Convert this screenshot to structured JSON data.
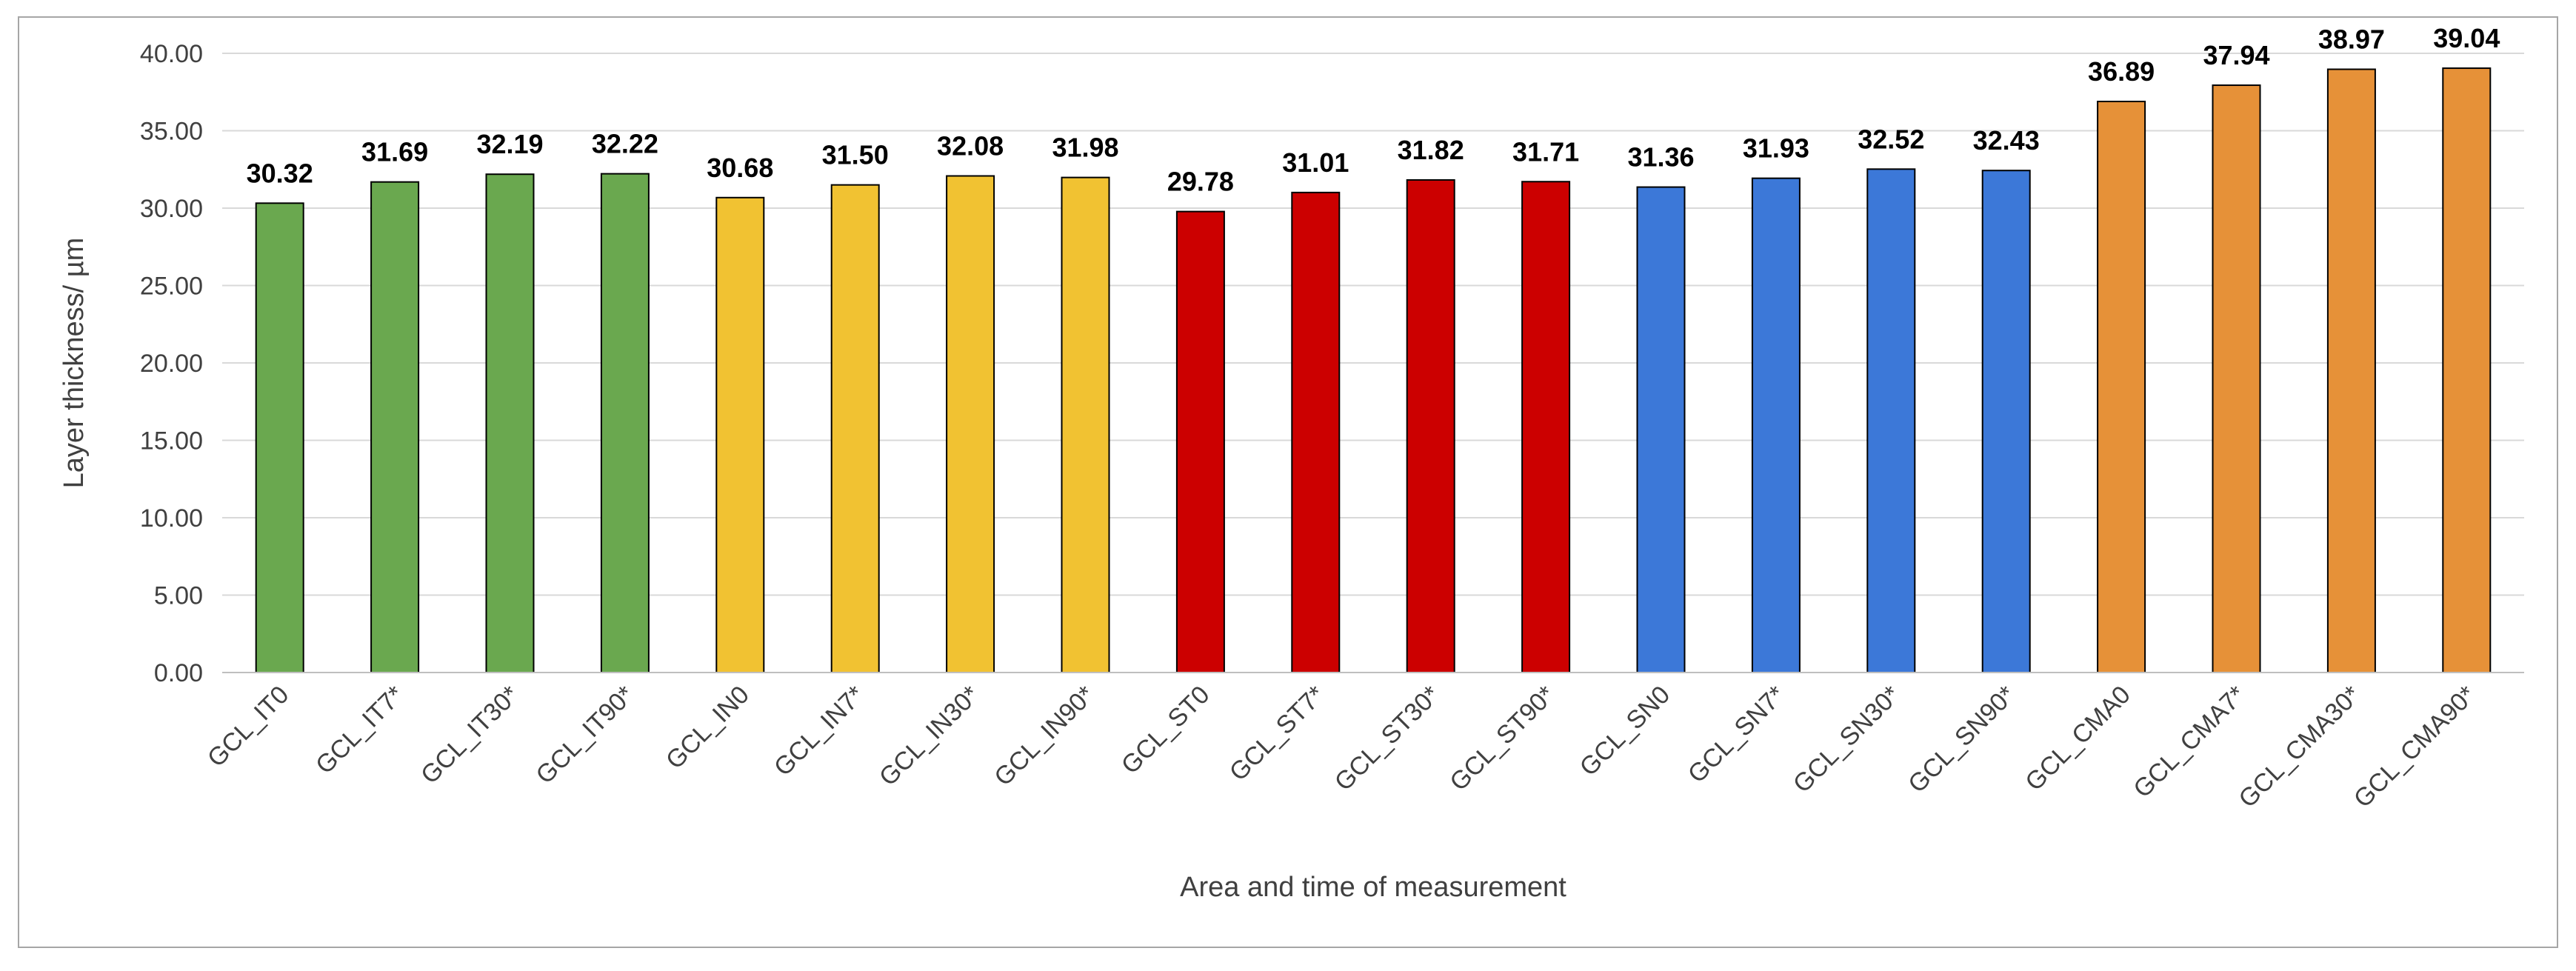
{
  "chart_data": {
    "type": "bar",
    "xlabel": "Area and time of measurement",
    "ylabel": "Layer thickness/ µm",
    "ylim": [
      0,
      40
    ],
    "yticks": [
      "0.00",
      "5.00",
      "10.00",
      "15.00",
      "20.00",
      "25.00",
      "30.00",
      "35.00",
      "40.00"
    ],
    "grid": true,
    "categories": [
      "GCL_IT0",
      "GCL_IT7*",
      "GCL_IT30*",
      "GCL_IT90*",
      "GCL_IN0",
      "GCL_IN7*",
      "GCL_IN30*",
      "GCL_IN90*",
      "GCL_ST0",
      "GCL_ST7*",
      "GCL_ST30*",
      "GCL_ST90*",
      "GCL_SN0",
      "GCL_SN7*",
      "GCL_SN30*",
      "GCL_SN90*",
      "GCL_CMA0",
      "GCL_CMA7*",
      "GCL_CMA30*",
      "GCL_CMA90*"
    ],
    "values": [
      30.32,
      31.69,
      32.19,
      32.22,
      30.68,
      31.5,
      32.08,
      31.98,
      29.78,
      31.01,
      31.82,
      31.71,
      31.36,
      31.93,
      32.52,
      32.43,
      36.89,
      37.94,
      38.97,
      39.04
    ],
    "value_labels": [
      "30.32",
      "31.69",
      "32.19",
      "32.22",
      "30.68",
      "31.50",
      "32.08",
      "31.98",
      "29.78",
      "31.01",
      "31.82",
      "31.71",
      "31.36",
      "31.93",
      "32.52",
      "32.43",
      "36.89",
      "37.94",
      "38.97",
      "39.04"
    ],
    "bar_colors": [
      "#6aa84f",
      "#6aa84f",
      "#6aa84f",
      "#6aa84f",
      "#f1c232",
      "#f1c232",
      "#f1c232",
      "#f1c232",
      "#cc0000",
      "#cc0000",
      "#cc0000",
      "#cc0000",
      "#3c78d8",
      "#3c78d8",
      "#3c78d8",
      "#3c78d8",
      "#e69138",
      "#e69138",
      "#e69138",
      "#e69138"
    ]
  },
  "colors": {
    "grid": "#d9d9d9",
    "axis": "#bfbfbf",
    "bar_outline": "#000000",
    "frame": "#a6a6a6"
  }
}
